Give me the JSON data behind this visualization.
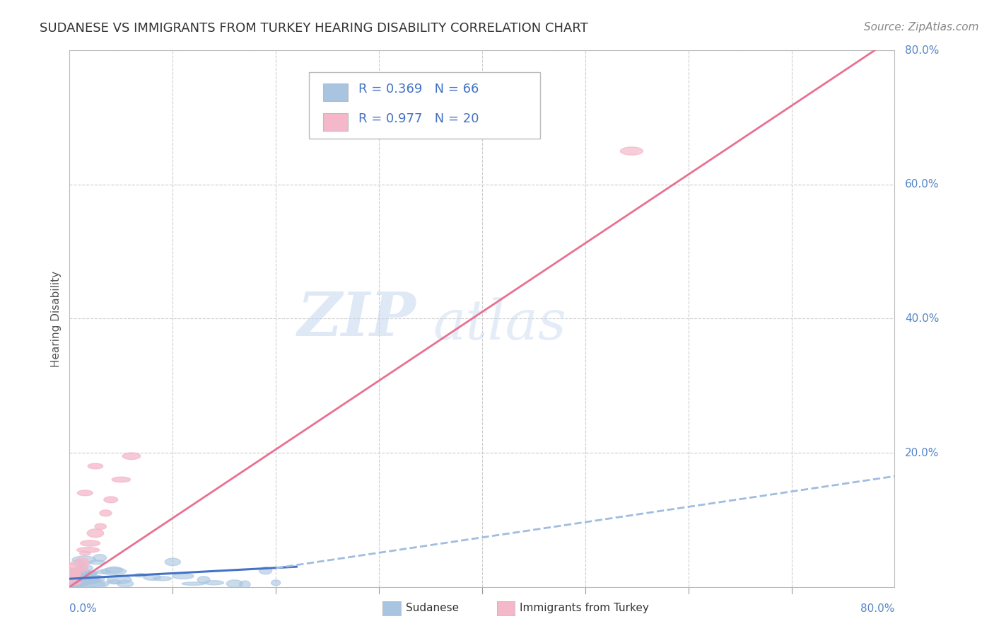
{
  "title": "SUDANESE VS IMMIGRANTS FROM TURKEY HEARING DISABILITY CORRELATION CHART",
  "source": "Source: ZipAtlas.com",
  "ylabel": "Hearing Disability",
  "series": [
    {
      "name": "Sudanese",
      "R": 0.369,
      "N": 66,
      "scatter_color": "#a8c4e0",
      "line_color": "#4472c4",
      "line_color_dashed": "#a0bce0"
    },
    {
      "name": "Immigrants from Turkey",
      "R": 0.977,
      "N": 20,
      "scatter_color": "#f4b8ca",
      "line_color": "#e87090"
    }
  ],
  "xlim": [
    0.0,
    0.8
  ],
  "ylim": [
    0.0,
    0.8
  ],
  "ytick_labels_right": [
    "20.0%",
    "40.0%",
    "60.0%",
    "80.0%"
  ],
  "ytick_positions_right": [
    0.2,
    0.4,
    0.6,
    0.8
  ],
  "watermark_zip": "ZIP",
  "watermark_atlas": "atlas",
  "background_color": "#ffffff",
  "grid_color": "#c8c8c8",
  "title_fontsize": 13,
  "source_fontsize": 11
}
